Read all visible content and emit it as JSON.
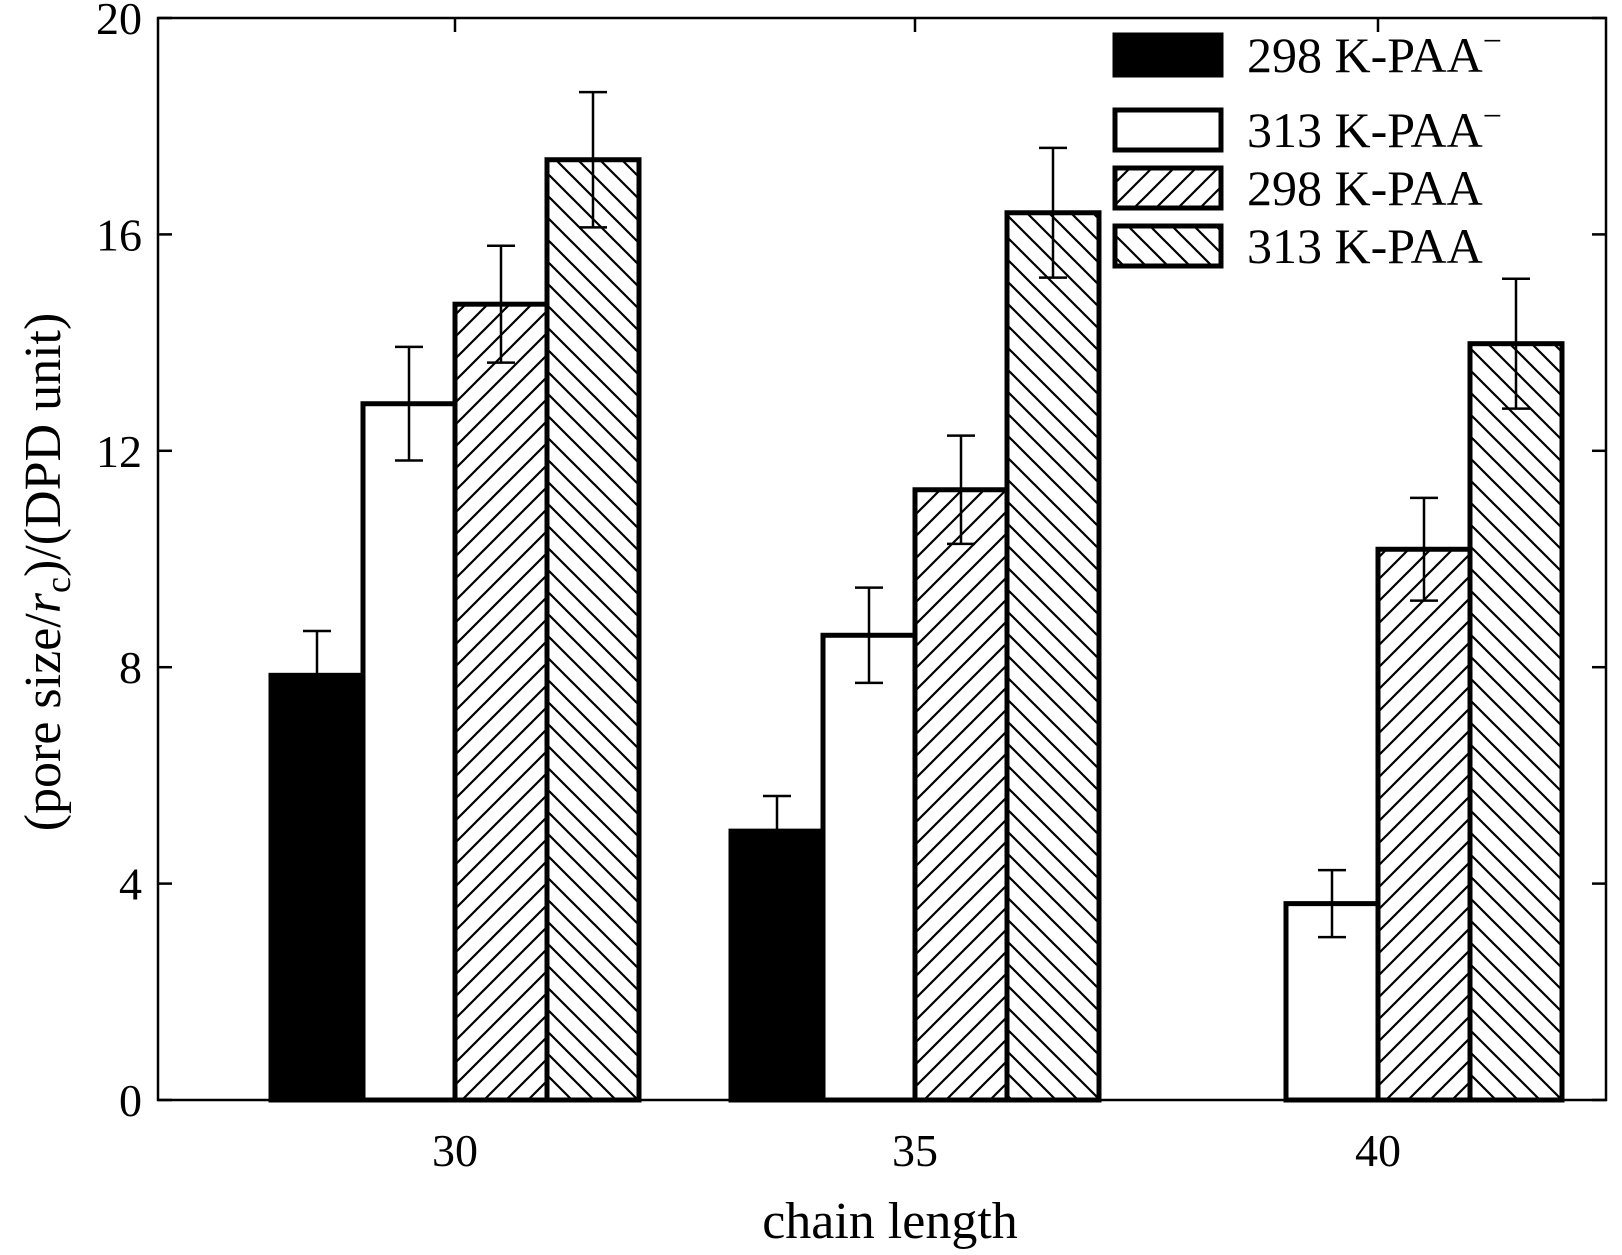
{
  "chart_data": {
    "type": "bar",
    "title": "",
    "xlabel": "chain length",
    "ylabel": {
      "prefix": "(pore size/",
      "italic": "r",
      "subscript": "c",
      "suffix": ")/(DPD unit)"
    },
    "categories": [
      "30",
      "35",
      "40"
    ],
    "ylim": [
      0,
      20
    ],
    "yticks": [
      "0",
      "4",
      "8",
      "12",
      "16",
      "20"
    ],
    "legend_position": "top-right",
    "series": [
      {
        "name": "298 K-PAA",
        "superscript": "−",
        "pattern": "solid",
        "values": [
          7.85,
          4.97,
          null
        ],
        "errors": [
          0.82,
          0.65,
          null
        ]
      },
      {
        "name": "313 K-PAA",
        "superscript": "−",
        "pattern": "empty",
        "values": [
          12.87,
          8.59,
          3.63
        ],
        "errors": [
          1.05,
          0.88,
          0.62
        ]
      },
      {
        "name": "298 K-PAA",
        "superscript": "",
        "pattern": "hatch-forward",
        "values": [
          14.71,
          11.28,
          10.18
        ],
        "errors": [
          1.08,
          1.0,
          0.95
        ]
      },
      {
        "name": "313 K-PAA",
        "superscript": "",
        "pattern": "hatch-back",
        "values": [
          17.38,
          16.4,
          13.98
        ],
        "errors": [
          1.25,
          1.2,
          1.2
        ]
      }
    ]
  }
}
